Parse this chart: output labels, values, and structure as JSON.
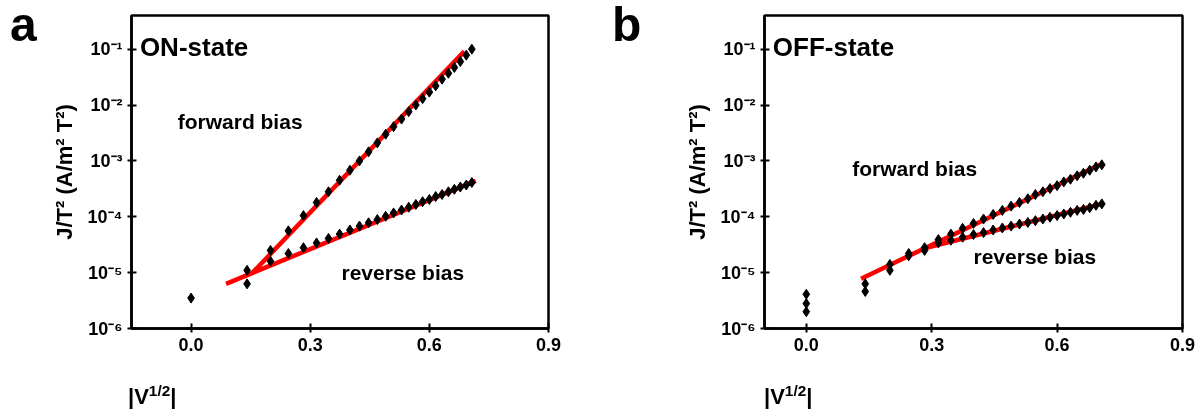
{
  "chart_data": [
    {
      "type": "scatter",
      "title": "a",
      "xlabel": "|V$^{1/2}$|",
      "ylabel": "J/T² (A/m² T²)",
      "log": "y",
      "xlim": [
        -0.15,
        0.9
      ],
      "xticks": [
        {
          "value": 0,
          "label": "0.0"
        },
        0.3,
        0.6,
        0.9
      ],
      "ylim": [
        1e-06,
        0.4
      ],
      "yticks": [
        {
          "value": 1e-06,
          "label": "10⁻⁶"
        },
        {
          "value": 1e-05,
          "label": "10⁻⁵"
        },
        {
          "value": 0.0001,
          "label": "10⁻⁴"
        },
        {
          "value": 0.001,
          "label": "10⁻³"
        },
        {
          "value": 0.01,
          "label": "10⁻²"
        },
        {
          "value": 0.1,
          "label": "10⁻¹"
        }
      ],
      "annotations": [
        "ON-state",
        "forward bias",
        "reverse bias"
      ],
      "series": [
        {
          "marker": "diamond",
          "color": "#000000",
          "x": [
            0,
            0.141,
            0.2,
            0.245,
            0.283,
            0.316,
            0.346,
            0.374,
            0.4,
            0.424,
            0.447,
            0.469,
            0.49,
            0.51,
            0.53,
            0.548,
            0.566,
            0.583,
            0.6,
            0.616,
            0.632,
            0.648,
            0.663,
            0.678,
            0.693,
            0.707
          ],
          "values": [
            3.5e-06,
            1.1e-05,
            2.5e-05,
            5.6e-05,
            0.000105,
            0.00018,
            0.00028,
            0.00045,
            0.00068,
            0.001,
            0.00145,
            0.0021,
            0.003,
            0.0041,
            0.0056,
            0.0076,
            0.01,
            0.013,
            0.017,
            0.022,
            0.029,
            0.037,
            0.047,
            0.06,
            0.078,
            0.1
          ]
        },
        {
          "marker": "diamond",
          "color": "#000000",
          "x": [
            0.141,
            0.2,
            0.245,
            0.283,
            0.316,
            0.346,
            0.374,
            0.4,
            0.424,
            0.447,
            0.469,
            0.49,
            0.51,
            0.53,
            0.548,
            0.566,
            0.583,
            0.6,
            0.616,
            0.632,
            0.648,
            0.663,
            0.678,
            0.693,
            0.707
          ],
          "values": [
            6.3e-06,
            1.6e-05,
            2.2e-05,
            2.8e-05,
            3.4e-05,
            4.1e-05,
            4.9e-05,
            5.8e-05,
            6.8e-05,
            7.8e-05,
            8.9e-05,
            0.000102,
            0.000117,
            0.000132,
            0.000148,
            0.000166,
            0.000186,
            0.000204,
            0.00023,
            0.00025,
            0.00028,
            0.00031,
            0.00034,
            0.00037,
            0.00041
          ]
        },
        {
          "type": "line",
          "marker": "none",
          "color": "#ff0000",
          "x": [
            0.155,
            0.688
          ],
          "values": [
            1e-05,
            0.091
          ]
        },
        {
          "type": "line",
          "marker": "none",
          "color": "#ff0000",
          "x": [
            0.088,
            0.717
          ],
          "values": [
            6.3e-06,
            0.00044
          ]
        }
      ]
    },
    {
      "type": "scatter",
      "title": "b",
      "xlabel": "|V$^{1/2}$|",
      "ylabel": "J/T² (A/m² T²)",
      "log": "y",
      "xlim": [
        -0.1,
        0.9
      ],
      "xticks": [
        {
          "value": 0,
          "label": "0.0"
        },
        0.3,
        0.6,
        0.9
      ],
      "ylim": [
        1e-06,
        0.4
      ],
      "yticks": [
        {
          "value": 1e-06,
          "label": "10⁻⁶"
        },
        {
          "value": 1e-05,
          "label": "10⁻⁵"
        },
        {
          "value": 0.0001,
          "label": "10⁻⁴"
        },
        {
          "value": 0.001,
          "label": "10⁻³"
        },
        {
          "value": 0.01,
          "label": "10⁻²"
        },
        {
          "value": 0.1,
          "label": "10⁻¹"
        }
      ],
      "annotations": [
        "OFF-state",
        "forward bias",
        "reverse bias"
      ],
      "series": [
        {
          "marker": "diamond",
          "color": "#000000",
          "x": [
            0,
            0,
            0
          ],
          "values": [
            4.1e-06,
            2.8e-06,
            2e-06
          ]
        },
        {
          "marker": "diamond",
          "color": "#000000",
          "x": [
            0.141,
            0.2,
            0.245,
            0.283,
            0.316,
            0.346,
            0.374,
            0.4,
            0.424,
            0.447,
            0.469,
            0.49,
            0.51,
            0.53,
            0.548,
            0.566,
            0.583,
            0.6,
            0.616,
            0.632,
            0.648,
            0.663,
            0.678,
            0.693,
            0.707
          ],
          "values": [
            6.3e-06,
            1.4e-05,
            2.2e-05,
            2.8e-05,
            3.9e-05,
            4.9e-05,
            6.2e-05,
            7.6e-05,
            9.1e-05,
            0.00011,
            0.00013,
            0.000155,
            0.00018,
            0.00021,
            0.00025,
            0.00028,
            0.00032,
            0.00036,
            0.00042,
            0.00047,
            0.00054,
            0.0006,
            0.00068,
            0.00078,
            0.00085
          ]
        },
        {
          "marker": "diamond",
          "color": "#000000",
          "x": [
            0.141,
            0.2,
            0.245,
            0.283,
            0.316,
            0.346,
            0.374,
            0.4,
            0.424,
            0.447,
            0.469,
            0.49,
            0.51,
            0.53,
            0.548,
            0.566,
            0.583,
            0.6,
            0.616,
            0.632,
            0.648,
            0.663,
            0.678,
            0.693,
            0.707
          ],
          "values": [
            4.6e-06,
            1.1e-05,
            2e-05,
            2.5e-05,
            3.4e-05,
            3.8e-05,
            4.3e-05,
            4.8e-05,
            5.2e-05,
            5.8e-05,
            6.3e-05,
            6.8e-05,
            7.4e-05,
            7.9e-05,
            8.5e-05,
            9.1e-05,
            9.8e-05,
            0.000105,
            0.000112,
            0.00012,
            0.00013,
            0.000135,
            0.000145,
            0.00016,
            0.00017
          ]
        },
        {
          "type": "line",
          "marker": "none",
          "color": "#ff0000",
          "x": [
            0.131,
            0.702
          ],
          "values": [
            7.8e-06,
            0.00085
          ]
        },
        {
          "type": "line",
          "marker": "none",
          "color": "#ff0000",
          "x": [
            0.28,
            0.707
          ],
          "values": [
            2.7e-05,
            0.00017
          ]
        }
      ]
    }
  ]
}
